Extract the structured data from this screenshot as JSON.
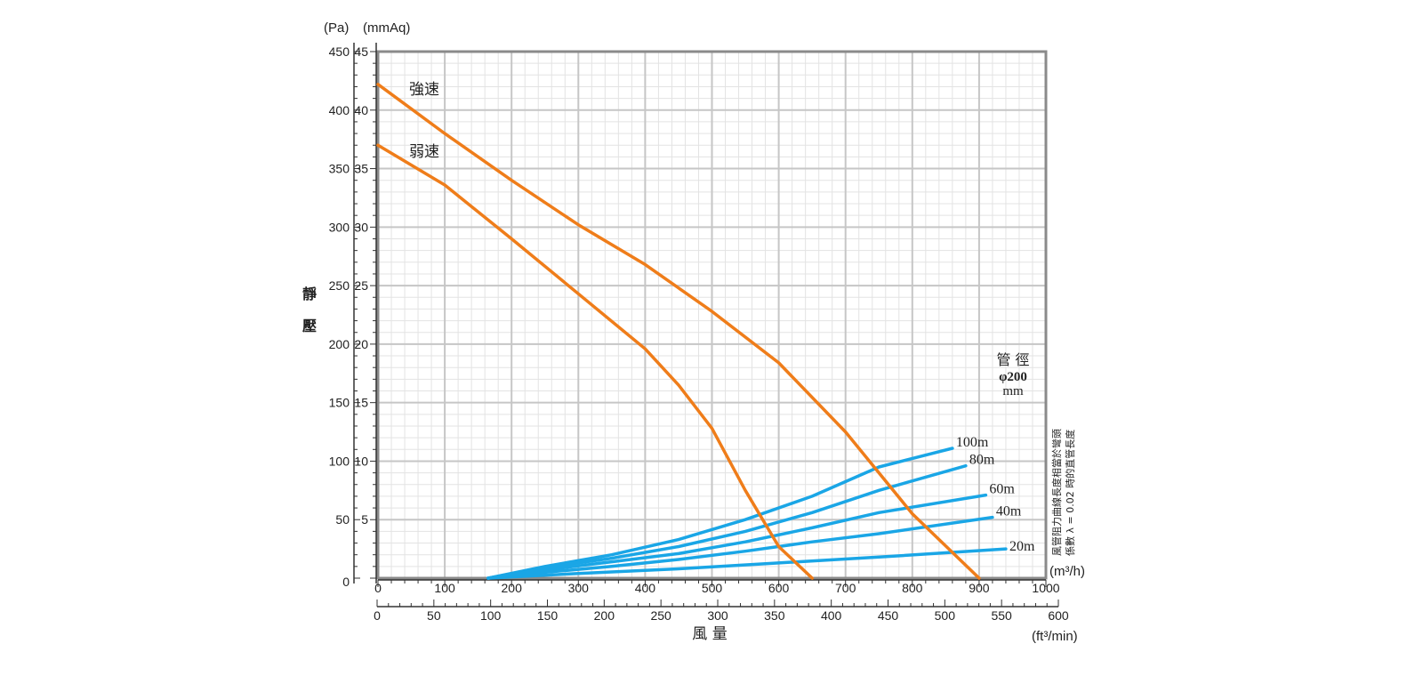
{
  "chart_data": {
    "type": "line",
    "y_unit_pa": "(Pa)",
    "y_unit_mmaq": "(mmAq)",
    "ylabel_chars": [
      "靜",
      "壓"
    ],
    "xlabel": "風 量",
    "x_unit_m3h": "(m³/h)",
    "x_unit_ft3min": "(ft³/min)",
    "x_m3h": {
      "range": [
        0,
        1000
      ],
      "ticks": [
        0,
        100,
        200,
        300,
        400,
        500,
        600,
        700,
        800,
        900,
        1000
      ]
    },
    "x_ft3min": {
      "range": [
        0,
        600
      ],
      "ticks": [
        0,
        50,
        100,
        150,
        200,
        250,
        300,
        350,
        400,
        450,
        500,
        550,
        600
      ]
    },
    "y_pa": {
      "range": [
        0,
        450
      ],
      "ticks": [
        0,
        50,
        100,
        150,
        200,
        250,
        300,
        350,
        400,
        450
      ]
    },
    "y_mmaq": {
      "range": [
        0,
        45
      ],
      "ticks": [
        5,
        10,
        15,
        20,
        25,
        30,
        35,
        40,
        45
      ]
    },
    "grid": true,
    "note_title": "管 徑",
    "note_size": "φ200",
    "note_unit": "mm",
    "side_note_line1": "風管阻力曲線長度相當於彎頭",
    "side_note_line2": "係數 λ = 0.02 時的直管長度",
    "fan_series": [
      {
        "name": "強速",
        "color": "#ef7d1a",
        "points": [
          [
            0,
            422
          ],
          [
            100,
            380
          ],
          [
            200,
            340
          ],
          [
            300,
            302
          ],
          [
            400,
            268
          ],
          [
            500,
            228
          ],
          [
            600,
            184
          ],
          [
            700,
            125
          ],
          [
            800,
            55
          ],
          [
            900,
            0
          ]
        ]
      },
      {
        "name": "弱速",
        "color": "#ef7d1a",
        "points": [
          [
            0,
            370
          ],
          [
            100,
            336
          ],
          [
            200,
            290
          ],
          [
            300,
            243
          ],
          [
            400,
            196
          ],
          [
            450,
            165
          ],
          [
            500,
            128
          ],
          [
            550,
            75
          ],
          [
            600,
            27
          ],
          [
            650,
            0
          ]
        ]
      }
    ],
    "duct_series": [
      {
        "name": "100m",
        "color": "#1aa6e6",
        "points": [
          [
            165,
            0
          ],
          [
            250,
            10
          ],
          [
            350,
            20
          ],
          [
            450,
            33
          ],
          [
            550,
            50
          ],
          [
            650,
            70
          ],
          [
            750,
            95
          ],
          [
            860,
            111
          ]
        ]
      },
      {
        "name": "80m",
        "color": "#1aa6e6",
        "points": [
          [
            165,
            0
          ],
          [
            250,
            9
          ],
          [
            350,
            17
          ],
          [
            450,
            27
          ],
          [
            550,
            40
          ],
          [
            650,
            56
          ],
          [
            750,
            75
          ],
          [
            880,
            96
          ]
        ]
      },
      {
        "name": "60m",
        "color": "#1aa6e6",
        "points": [
          [
            165,
            0
          ],
          [
            250,
            7
          ],
          [
            350,
            14
          ],
          [
            450,
            21
          ],
          [
            550,
            31
          ],
          [
            650,
            43
          ],
          [
            750,
            56
          ],
          [
            910,
            71
          ]
        ]
      },
      {
        "name": "40m",
        "color": "#1aa6e6",
        "points": [
          [
            165,
            0
          ],
          [
            250,
            5
          ],
          [
            350,
            10
          ],
          [
            450,
            16
          ],
          [
            550,
            23
          ],
          [
            650,
            31
          ],
          [
            750,
            38
          ],
          [
            920,
            52
          ]
        ]
      },
      {
        "name": "20m",
        "color": "#1aa6e6",
        "points": [
          [
            165,
            0
          ],
          [
            300,
            4
          ],
          [
            450,
            8
          ],
          [
            600,
            13
          ],
          [
            750,
            18
          ],
          [
            940,
            25
          ]
        ]
      }
    ]
  }
}
